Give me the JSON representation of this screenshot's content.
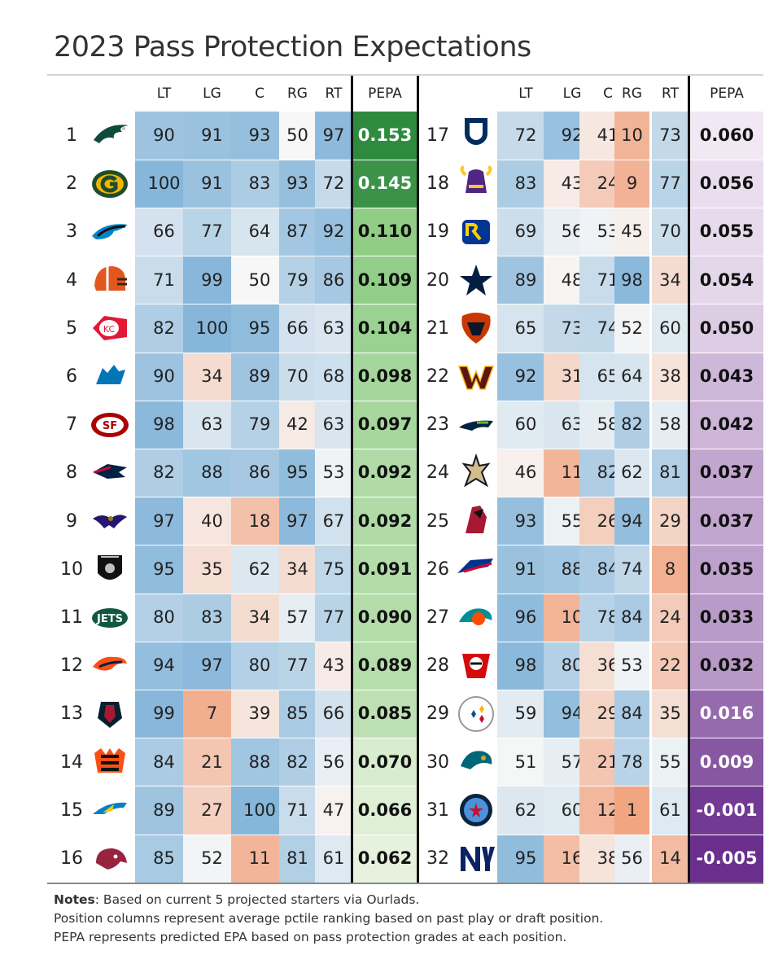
{
  "title": "2023 Pass Protection Expectations",
  "headers": {
    "lt": "LT",
    "lg": "LG",
    "c": "C",
    "rg": "RG",
    "rt": "RT",
    "pepa": "PEPA"
  },
  "colors": {
    "blue_high": "#86b6da",
    "neutral": "#f7f7f7",
    "orange_low": "#f1a37f",
    "green_high": "#2e8b3e",
    "green_low": "#e6f2dd",
    "purple_high": "#f1e8f4",
    "purple_low": "#6a2f8c"
  },
  "chart_data": {
    "type": "table",
    "title": "2023 Pass Protection Expectations",
    "columns": [
      "Rank",
      "Team",
      "LT",
      "LG",
      "C",
      "RG",
      "RT",
      "PEPA"
    ],
    "rows": [
      {
        "rank": "1",
        "team": "Eagles",
        "icon": "eagles-logo-icon",
        "lt": 90,
        "lg": 91,
        "c": 93,
        "rg": 50,
        "rt": 97,
        "pepa": "0.153"
      },
      {
        "rank": "2",
        "team": "Packers",
        "icon": "packers-logo-icon",
        "lt": 100,
        "lg": 91,
        "c": 83,
        "rg": 93,
        "rt": 72,
        "pepa": "0.145"
      },
      {
        "rank": "3",
        "team": "Panthers",
        "icon": "panthers-logo-icon",
        "lt": 66,
        "lg": 77,
        "c": 64,
        "rg": 87,
        "rt": 92,
        "pepa": "0.110"
      },
      {
        "rank": "4",
        "team": "Browns",
        "icon": "browns-logo-icon",
        "lt": 71,
        "lg": 99,
        "c": 50,
        "rg": 79,
        "rt": 86,
        "pepa": "0.109"
      },
      {
        "rank": "5",
        "team": "Chiefs",
        "icon": "chiefs-logo-icon",
        "lt": 82,
        "lg": 100,
        "c": 95,
        "rg": 66,
        "rt": 63,
        "pepa": "0.104"
      },
      {
        "rank": "6",
        "team": "Lions",
        "icon": "lions-logo-icon",
        "lt": 90,
        "lg": 34,
        "c": 89,
        "rg": 70,
        "rt": 68,
        "pepa": "0.098"
      },
      {
        "rank": "7",
        "team": "49ers",
        "icon": "49ers-logo-icon",
        "lt": 98,
        "lg": 63,
        "c": 79,
        "rg": 42,
        "rt": 63,
        "pepa": "0.097"
      },
      {
        "rank": "8",
        "team": "Patriots",
        "icon": "patriots-logo-icon",
        "lt": 82,
        "lg": 88,
        "c": 86,
        "rg": 95,
        "rt": 53,
        "pepa": "0.092"
      },
      {
        "rank": "9",
        "team": "Ravens",
        "icon": "ravens-logo-icon",
        "lt": 97,
        "lg": 40,
        "c": 18,
        "rg": 97,
        "rt": 67,
        "pepa": "0.092"
      },
      {
        "rank": "10",
        "team": "Raiders",
        "icon": "raiders-logo-icon",
        "lt": 95,
        "lg": 35,
        "c": 62,
        "rg": 34,
        "rt": 75,
        "pepa": "0.091"
      },
      {
        "rank": "11",
        "team": "Jets",
        "icon": "jets-logo-icon",
        "lt": 80,
        "lg": 83,
        "c": 34,
        "rg": 57,
        "rt": 77,
        "pepa": "0.090"
      },
      {
        "rank": "12",
        "team": "Broncos",
        "icon": "broncos-logo-icon",
        "lt": 94,
        "lg": 97,
        "c": 80,
        "rg": 77,
        "rt": 43,
        "pepa": "0.089"
      },
      {
        "rank": "13",
        "team": "Texans",
        "icon": "texans-logo-icon",
        "lt": 99,
        "lg": 7,
        "c": 39,
        "rg": 85,
        "rt": 66,
        "pepa": "0.085"
      },
      {
        "rank": "14",
        "team": "Bengals",
        "icon": "bengals-logo-icon",
        "lt": 84,
        "lg": 21,
        "c": 88,
        "rg": 82,
        "rt": 56,
        "pepa": "0.070"
      },
      {
        "rank": "15",
        "team": "Chargers",
        "icon": "chargers-logo-icon",
        "lt": 89,
        "lg": 27,
        "c": 100,
        "rg": 71,
        "rt": 47,
        "pepa": "0.066"
      },
      {
        "rank": "16",
        "team": "Cardinals",
        "icon": "cardinals-logo-icon",
        "lt": 85,
        "lg": 52,
        "c": 11,
        "rg": 81,
        "rt": 61,
        "pepa": "0.062"
      },
      {
        "rank": "17",
        "team": "Colts",
        "icon": "colts-logo-icon",
        "lt": 72,
        "lg": 92,
        "c": 41,
        "rg": 10,
        "rt": 73,
        "pepa": "0.060"
      },
      {
        "rank": "18",
        "team": "Vikings",
        "icon": "vikings-logo-icon",
        "lt": 83,
        "lg": 43,
        "c": 24,
        "rg": 9,
        "rt": 77,
        "pepa": "0.056"
      },
      {
        "rank": "19",
        "team": "Rams",
        "icon": "rams-logo-icon",
        "lt": 69,
        "lg": 56,
        "c": 53,
        "rg": 45,
        "rt": 70,
        "pepa": "0.055"
      },
      {
        "rank": "20",
        "team": "Cowboys",
        "icon": "cowboys-logo-icon",
        "lt": 89,
        "lg": 48,
        "c": 71,
        "rg": 98,
        "rt": 34,
        "pepa": "0.054"
      },
      {
        "rank": "21",
        "team": "Bears",
        "icon": "bears-logo-icon",
        "lt": 65,
        "lg": 73,
        "c": 74,
        "rg": 52,
        "rt": 60,
        "pepa": "0.050"
      },
      {
        "rank": "22",
        "team": "Commanders",
        "icon": "commanders-logo-icon",
        "lt": 92,
        "lg": 31,
        "c": 65,
        "rg": 64,
        "rt": 38,
        "pepa": "0.043"
      },
      {
        "rank": "23",
        "team": "Seahawks",
        "icon": "seahawks-logo-icon",
        "lt": 60,
        "lg": 63,
        "c": 58,
        "rg": 82,
        "rt": 58,
        "pepa": "0.042"
      },
      {
        "rank": "24",
        "team": "Saints",
        "icon": "saints-logo-icon",
        "lt": 46,
        "lg": 11,
        "c": 82,
        "rg": 62,
        "rt": 81,
        "pepa": "0.037"
      },
      {
        "rank": "25",
        "team": "Falcons",
        "icon": "falcons-logo-icon",
        "lt": 93,
        "lg": 55,
        "c": 26,
        "rg": 94,
        "rt": 29,
        "pepa": "0.037"
      },
      {
        "rank": "26",
        "team": "Bills",
        "icon": "bills-logo-icon",
        "lt": 91,
        "lg": 88,
        "c": 84,
        "rg": 74,
        "rt": 8,
        "pepa": "0.035"
      },
      {
        "rank": "27",
        "team": "Dolphins",
        "icon": "dolphins-logo-icon",
        "lt": 96,
        "lg": 10,
        "c": 78,
        "rg": 84,
        "rt": 24,
        "pepa": "0.033"
      },
      {
        "rank": "28",
        "team": "Buccaneers",
        "icon": "buccaneers-logo-icon",
        "lt": 98,
        "lg": 80,
        "c": 36,
        "rg": 53,
        "rt": 22,
        "pepa": "0.032"
      },
      {
        "rank": "29",
        "team": "Steelers",
        "icon": "steelers-logo-icon",
        "lt": 59,
        "lg": 94,
        "c": 29,
        "rg": 84,
        "rt": 35,
        "pepa": "0.016"
      },
      {
        "rank": "30",
        "team": "Jaguars",
        "icon": "jaguars-logo-icon",
        "lt": 51,
        "lg": 57,
        "c": 21,
        "rg": 78,
        "rt": 55,
        "pepa": "0.009"
      },
      {
        "rank": "31",
        "team": "Titans",
        "icon": "titans-logo-icon",
        "lt": 62,
        "lg": 60,
        "c": 12,
        "rg": 1,
        "rt": 61,
        "pepa": "-0.001"
      },
      {
        "rank": "32",
        "team": "Giants",
        "icon": "giants-logo-icon",
        "lt": 95,
        "lg": 16,
        "c": 38,
        "rg": 56,
        "rt": 14,
        "pepa": "-0.005"
      }
    ]
  },
  "notes": {
    "label": "Notes",
    "line1": ": Based on current 5 projected starters via Ourlads.",
    "line2": "Position columns represent average pctile ranking based on past play or draft position.",
    "line3": "PEPA represents predicted EPA based on pass protection grades at each position."
  }
}
